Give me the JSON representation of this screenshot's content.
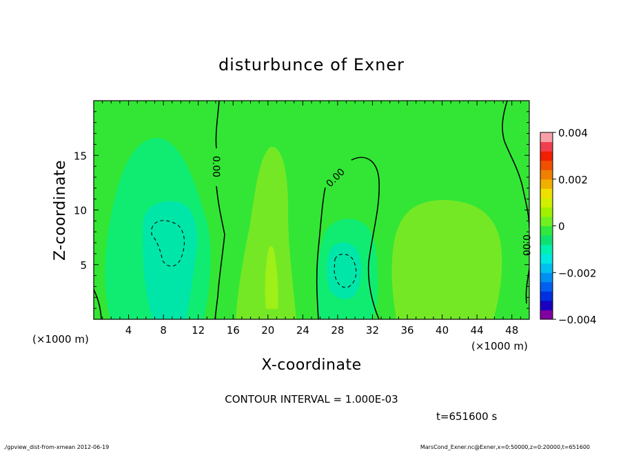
{
  "chart_data": {
    "type": "heatmap",
    "title": "disturbunce of Exner",
    "xlabel": "X-coordinate",
    "ylabel": "Z-coordinate",
    "x_unit": "(×1000 m)",
    "y_unit": "(×1000 m)",
    "xlim": [
      0,
      50
    ],
    "ylim": [
      0,
      20
    ],
    "x_ticks": [
      "4",
      "8",
      "12",
      "16",
      "20",
      "24",
      "28",
      "32",
      "36",
      "40",
      "44",
      "48"
    ],
    "x_tick_values": [
      4,
      8,
      12,
      16,
      20,
      24,
      28,
      32,
      36,
      40,
      44,
      48
    ],
    "y_ticks": [
      "5",
      "10",
      "15"
    ],
    "y_tick_values": [
      5,
      10,
      15
    ],
    "colorbar": {
      "min": -0.004,
      "max": 0.004,
      "ticks": [
        "0.004",
        "0.002",
        "0",
        "−0.002",
        "−0.004"
      ],
      "tick_values": [
        0.004,
        0.002,
        0,
        -0.002,
        -0.004
      ],
      "colors": [
        "#8000a0",
        "#1a00c0",
        "#0030e0",
        "#0060f0",
        "#0090f0",
        "#00c0f0",
        "#00e8e0",
        "#00f0b0",
        "#10e070",
        "#30e840",
        "#70f020",
        "#a0f000",
        "#d0f000",
        "#f0e000",
        "#f0b000",
        "#f08000",
        "#f05000",
        "#f02000",
        "#f04050",
        "#f8a0a8"
      ]
    },
    "contour_labels": [
      "0.00",
      "0.00",
      "0.00"
    ],
    "contour_interval_text": "CONTOUR INTERVAL = 1.000E-03",
    "time_text": "t=651600 s"
  },
  "footer": {
    "left": "./gpview_dist-from-xmean  2012-06-19",
    "right": "MarsCond_Exner.nc@Exner,x=0:50000,z=0:20000,t=651600"
  },
  "colors": {
    "background_field": "#33e635",
    "positive_field": "#75e825",
    "positive_field_2": "#9ef018",
    "negative_field": "#10ec72",
    "negative_field_2": "#00e6a8"
  }
}
